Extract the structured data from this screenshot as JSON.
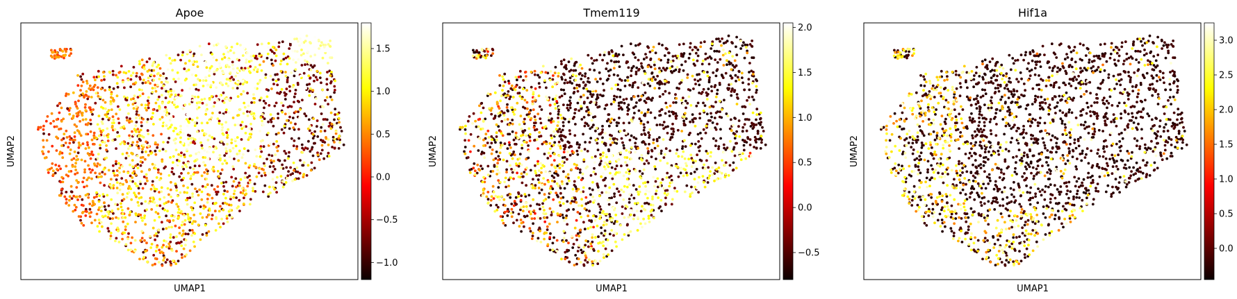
{
  "chart_data": [
    {
      "type": "scatter",
      "title": "Apoe",
      "xlabel": "UMAP1",
      "ylabel": "UMAP2",
      "colormap": "hot",
      "color_range": [
        -1.2,
        1.8
      ],
      "colorbar_ticks": [
        -1.0,
        -0.5,
        0.0,
        0.5,
        1.0,
        1.5
      ],
      "colorbar_labels": [
        "−1.0",
        "−0.5",
        "0.0",
        "0.5",
        "1.0",
        "1.5"
      ],
      "pattern": "apoe"
    },
    {
      "type": "scatter",
      "title": "Tmem119",
      "xlabel": "UMAP1",
      "ylabel": "UMAP2",
      "colormap": "hot",
      "color_range": [
        -0.8,
        2.05
      ],
      "colorbar_ticks": [
        -0.5,
        0.0,
        0.5,
        1.0,
        1.5,
        2.0
      ],
      "colorbar_labels": [
        "−0.5",
        "0.0",
        "0.5",
        "1.0",
        "1.5",
        "2.0"
      ],
      "pattern": "tmem"
    },
    {
      "type": "scatter",
      "title": "Hif1a",
      "xlabel": "UMAP1",
      "ylabel": "UMAP2",
      "colormap": "hot",
      "color_range": [
        -0.45,
        3.25
      ],
      "colorbar_ticks": [
        0.0,
        0.5,
        1.0,
        1.5,
        2.0,
        2.5,
        3.0
      ],
      "colorbar_labels": [
        "0.0",
        "0.5",
        "1.0",
        "1.5",
        "2.0",
        "2.5",
        "3.0"
      ],
      "pattern": "hif"
    }
  ]
}
